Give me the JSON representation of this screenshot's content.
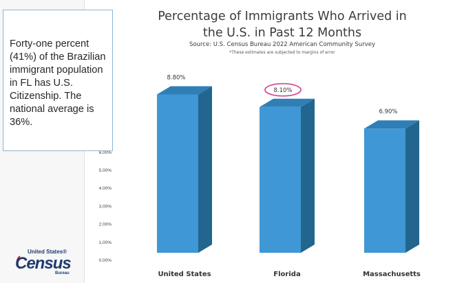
{
  "callout": {
    "text": "Forty-one percent (41%) of the Brazilian immigrant population in FL has U.S. Citizenship. The national average is 36%."
  },
  "logo": {
    "top": "United States®",
    "main": "Census",
    "bottom": "Bureau"
  },
  "colors": {
    "bar_front": "#3f97d5",
    "bar_side": "#22658f",
    "bar_top": "#2f7fb6",
    "highlight": "#d64f9b"
  },
  "chart_data": {
    "type": "bar",
    "title": "Percentage of Immigrants Who Arrived in the U.S. in Past 12 Months",
    "title_lines": [
      "Percentage of Immigrants Who Arrived in",
      "the U.S. in Past 12 Months"
    ],
    "subtitle": "Source: U.S. Census Bureau 2022 American Community Survey",
    "note": "*These estimates are subjected to margins of error",
    "categories": [
      "United States",
      "Florida",
      "Massachusetts"
    ],
    "values": [
      8.8,
      8.1,
      6.9
    ],
    "value_labels": [
      "8.80%",
      "8.10%",
      "6.90%"
    ],
    "highlighted_category": "Florida",
    "ylim": [
      0,
      10
    ],
    "yticks": [
      0,
      1,
      2,
      3,
      4,
      5,
      6
    ],
    "ytick_labels": [
      "0.00%",
      "1.00%",
      "2.00%",
      "3.00%",
      "4.00%",
      "5.00%",
      "6.00%"
    ],
    "xlabel": "",
    "ylabel": ""
  }
}
